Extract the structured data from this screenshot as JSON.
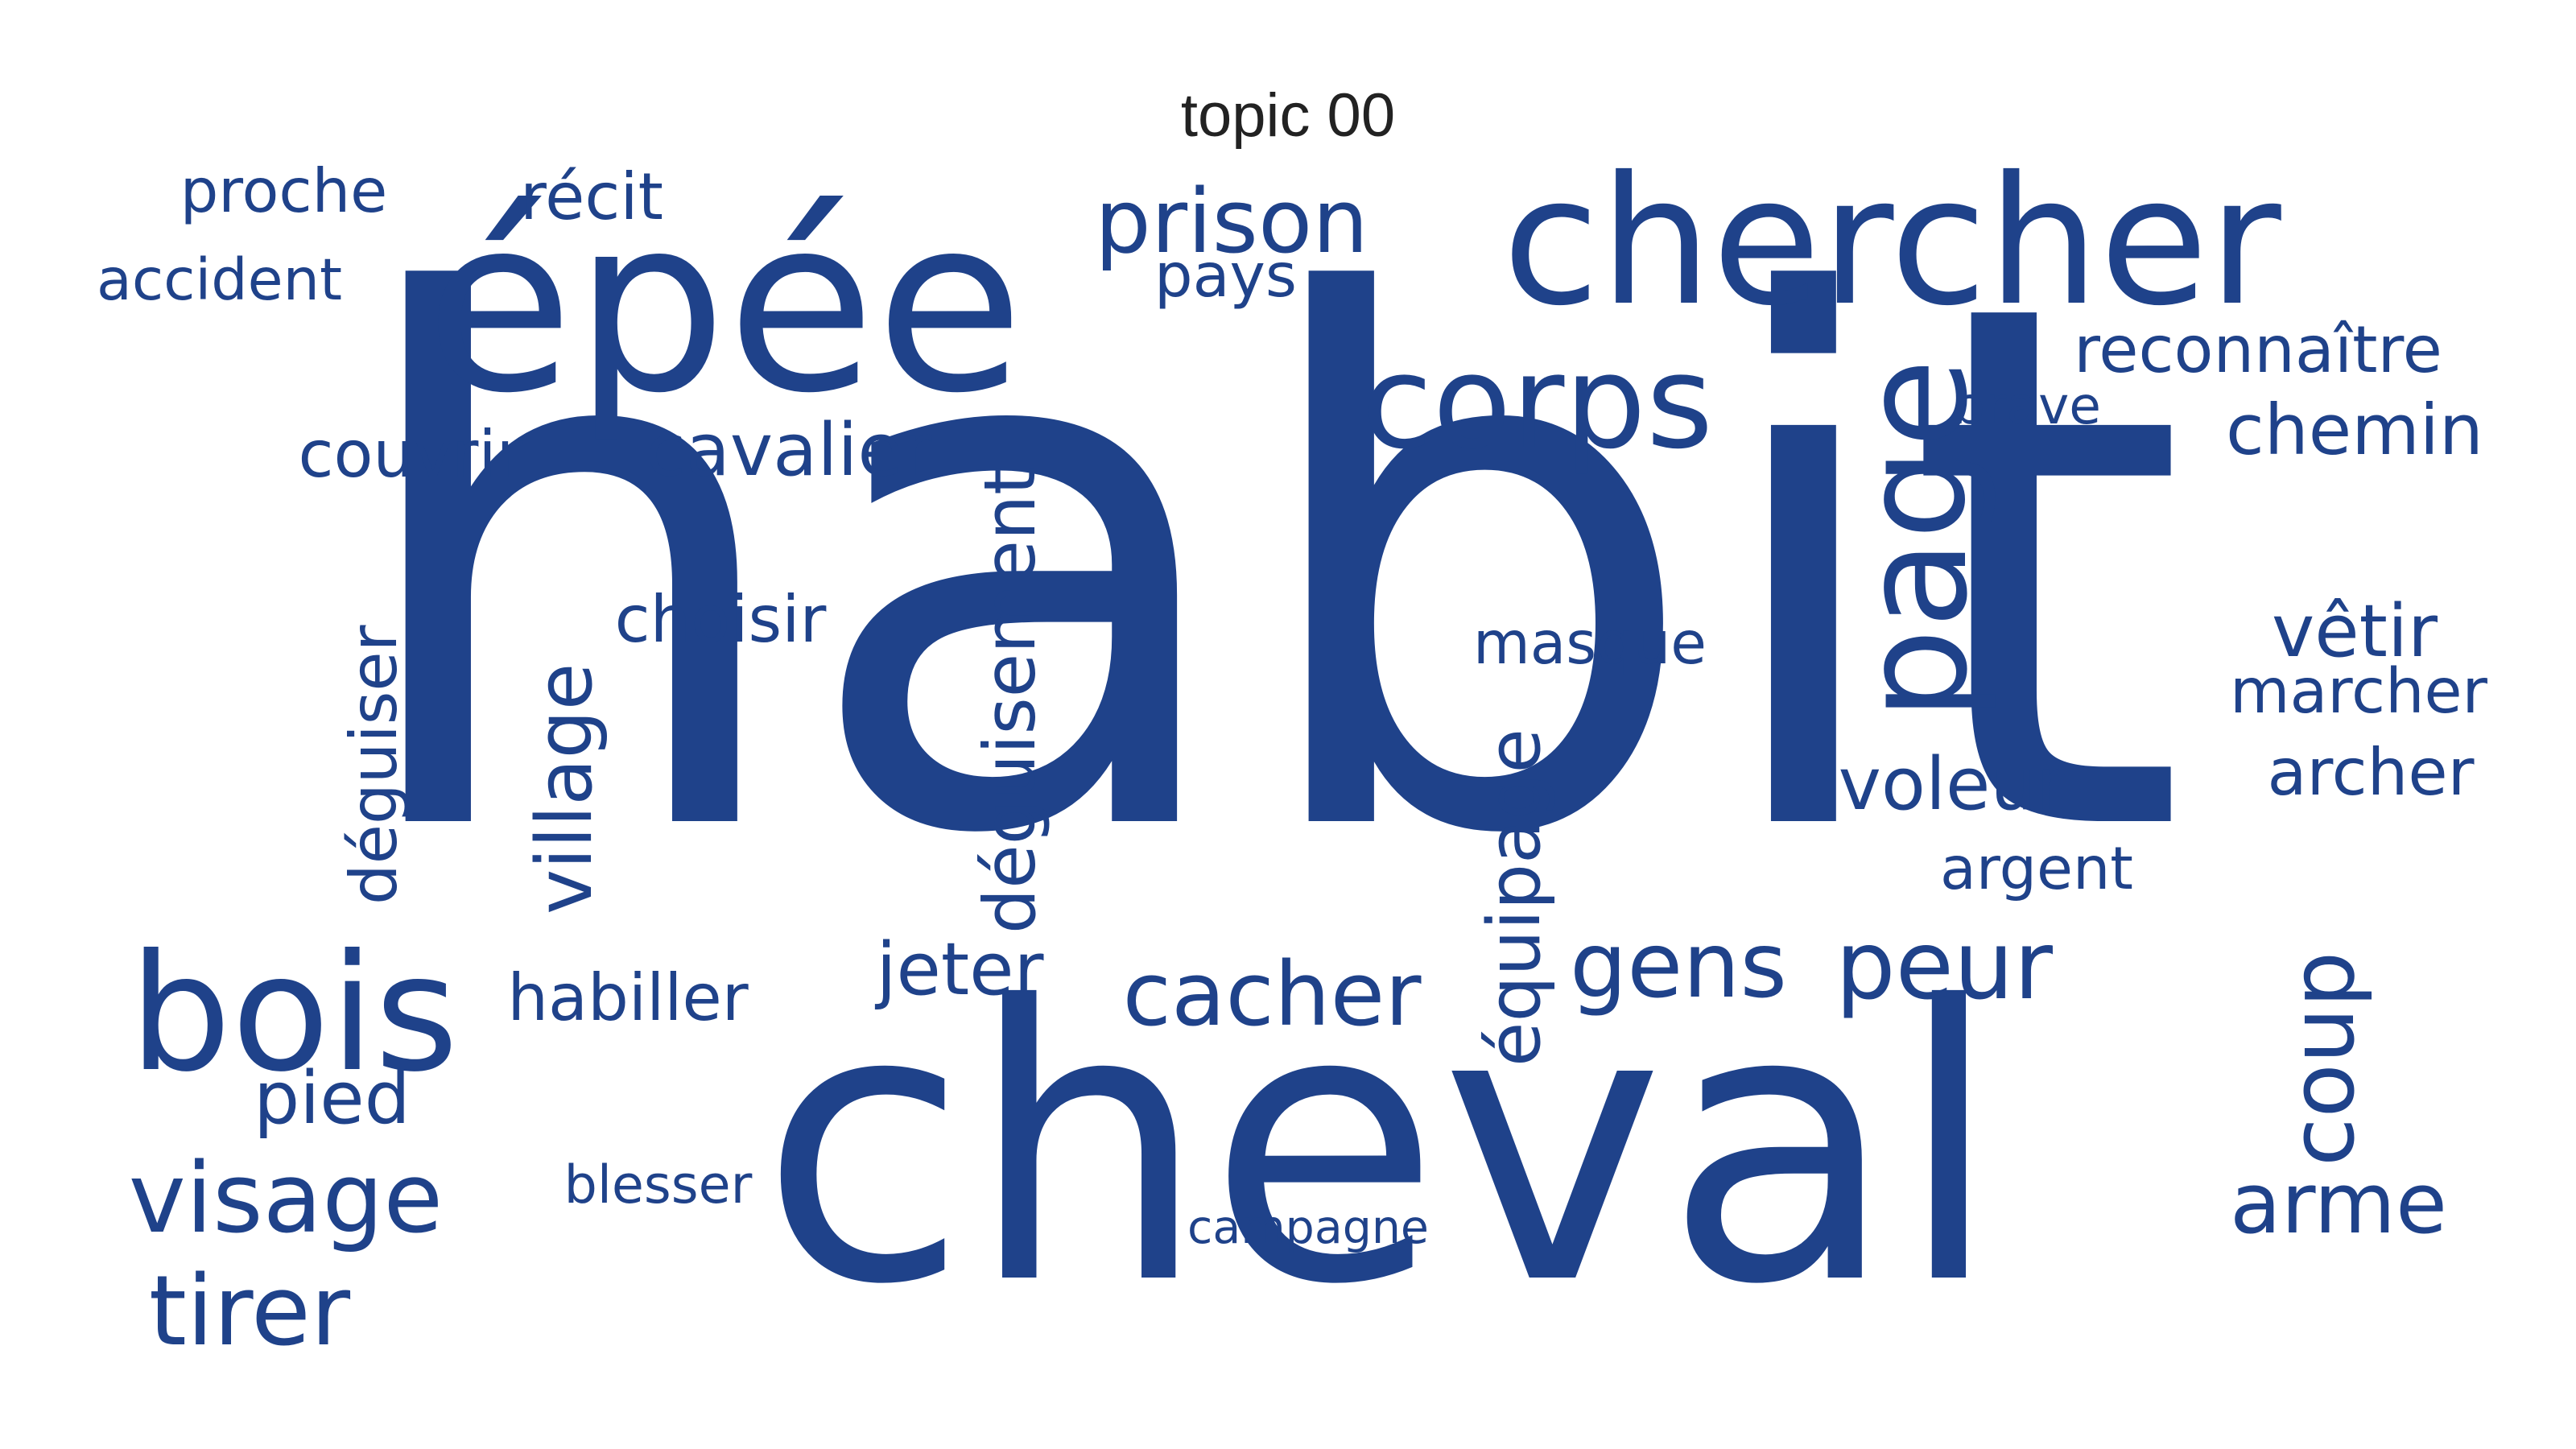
{
  "title": "topic 00",
  "word_color": "#1f428a",
  "words": [
    {
      "text": "habit",
      "vertical": false
    },
    {
      "text": "cheval",
      "vertical": false
    },
    {
      "text": "épée",
      "vertical": false
    },
    {
      "text": "chercher",
      "vertical": false
    },
    {
      "text": "corps",
      "vertical": false
    },
    {
      "text": "prison",
      "vertical": false
    },
    {
      "text": "page",
      "vertical": true
    },
    {
      "text": "bois",
      "vertical": false
    },
    {
      "text": "cacher",
      "vertical": false
    },
    {
      "text": "gens",
      "vertical": false
    },
    {
      "text": "peur",
      "vertical": false
    },
    {
      "text": "visage",
      "vertical": false
    },
    {
      "text": "tirer",
      "vertical": false
    },
    {
      "text": "arme",
      "vertical": false
    },
    {
      "text": "coup",
      "vertical": true
    },
    {
      "text": "voleur",
      "vertical": false
    },
    {
      "text": "cavalier",
      "vertical": false
    },
    {
      "text": "pied",
      "vertical": false
    },
    {
      "text": "jeter",
      "vertical": false
    },
    {
      "text": "chemin",
      "vertical": false
    },
    {
      "text": "déguisement",
      "vertical": true
    },
    {
      "text": "village",
      "vertical": true
    },
    {
      "text": "équipage",
      "vertical": true
    },
    {
      "text": "habiller",
      "vertical": false
    },
    {
      "text": "vêtir",
      "vertical": false
    },
    {
      "text": "choisir",
      "vertical": false
    },
    {
      "text": "masque",
      "vertical": false
    },
    {
      "text": "marcher",
      "vertical": false
    },
    {
      "text": "archer",
      "vertical": false
    },
    {
      "text": "couvrir",
      "vertical": false
    },
    {
      "text": "reconnaître",
      "vertical": false
    },
    {
      "text": "récit",
      "vertical": false
    },
    {
      "text": "proche",
      "vertical": false
    },
    {
      "text": "accident",
      "vertical": false
    },
    {
      "text": "déguiser",
      "vertical": true
    },
    {
      "text": "argent",
      "vertical": false
    },
    {
      "text": "pays",
      "vertical": false
    },
    {
      "text": "blesser",
      "vertical": false
    },
    {
      "text": "campagne",
      "vertical": false
    },
    {
      "text": "brave",
      "vertical": false
    }
  ]
}
